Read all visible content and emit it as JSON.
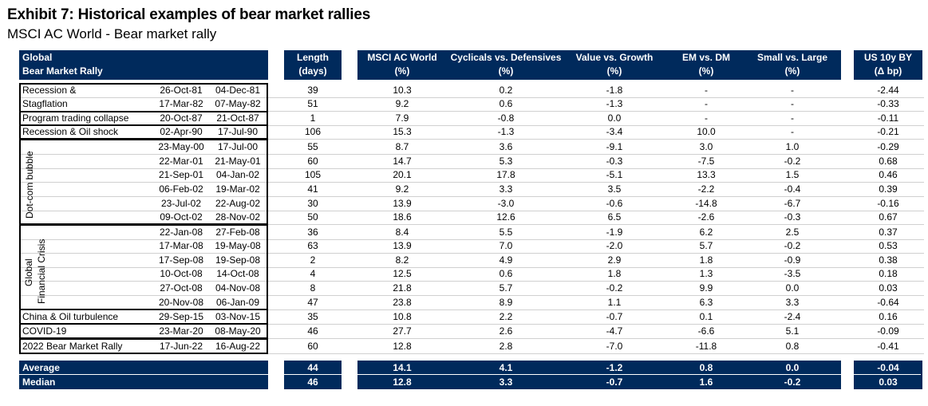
{
  "title": "Exhibit 7: Historical examples of bear market rallies",
  "subtitle": "MSCI AC World - Bear market rally",
  "header": {
    "global": "Global",
    "bmr": "Bear Market Rally",
    "length1": "Length",
    "length2": "(days)",
    "msci1": "MSCI AC World",
    "msci2": "(%)",
    "cyc1": "Cyclicals vs. Defensives",
    "cyc2": "(%)",
    "val1": "Value vs. Growth",
    "val2": "(%)",
    "em1": "EM vs. DM",
    "em2": "(%)",
    "sml1": "Small vs. Large",
    "sml2": "(%)",
    "us1": "US 10y BY",
    "us2": "(Δ bp)"
  },
  "groups": {
    "dotcom": "Dot-com bubble",
    "gfc1": "Global",
    "gfc2": "Financial Crisis"
  },
  "rows": [
    {
      "label": "Recession &",
      "start": "26-Oct-81",
      "end": "04-Dec-81",
      "len": "39",
      "msci": "10.3",
      "cyc": "0.2",
      "val": "-1.8",
      "em": "-",
      "sml": "-",
      "us": "-2.44"
    },
    {
      "label": "Stagflation",
      "start": "17-Mar-82",
      "end": "07-May-82",
      "len": "51",
      "msci": "9.2",
      "cyc": "0.6",
      "val": "-1.3",
      "em": "-",
      "sml": "-",
      "us": "-0.33"
    },
    {
      "label": "Program trading collapse",
      "start": "20-Oct-87",
      "end": "21-Oct-87",
      "len": "1",
      "msci": "7.9",
      "cyc": "-0.8",
      "val": "0.0",
      "em": "-",
      "sml": "-",
      "us": "-0.11"
    },
    {
      "label": "Recession & Oil shock",
      "start": "02-Apr-90",
      "end": "17-Jul-90",
      "len": "106",
      "msci": "15.3",
      "cyc": "-1.3",
      "val": "-3.4",
      "em": "10.0",
      "sml": "-",
      "us": "-0.21"
    },
    {
      "label": "",
      "start": "23-May-00",
      "end": "17-Jul-00",
      "len": "55",
      "msci": "8.7",
      "cyc": "3.6",
      "val": "-9.1",
      "em": "3.0",
      "sml": "1.0",
      "us": "-0.29"
    },
    {
      "label": "",
      "start": "22-Mar-01",
      "end": "21-May-01",
      "len": "60",
      "msci": "14.7",
      "cyc": "5.3",
      "val": "-0.3",
      "em": "-7.5",
      "sml": "-0.2",
      "us": "0.68"
    },
    {
      "label": "",
      "start": "21-Sep-01",
      "end": "04-Jan-02",
      "len": "105",
      "msci": "20.1",
      "cyc": "17.8",
      "val": "-5.1",
      "em": "13.3",
      "sml": "1.5",
      "us": "0.46"
    },
    {
      "label": "",
      "start": "06-Feb-02",
      "end": "19-Mar-02",
      "len": "41",
      "msci": "9.2",
      "cyc": "3.3",
      "val": "3.5",
      "em": "-2.2",
      "sml": "-0.4",
      "us": "0.39"
    },
    {
      "label": "",
      "start": "23-Jul-02",
      "end": "22-Aug-02",
      "len": "30",
      "msci": "13.9",
      "cyc": "-3.0",
      "val": "-0.6",
      "em": "-14.8",
      "sml": "-6.7",
      "us": "-0.16"
    },
    {
      "label": "",
      "start": "09-Oct-02",
      "end": "28-Nov-02",
      "len": "50",
      "msci": "18.6",
      "cyc": "12.6",
      "val": "6.5",
      "em": "-2.6",
      "sml": "-0.3",
      "us": "0.67"
    },
    {
      "label": "",
      "start": "22-Jan-08",
      "end": "27-Feb-08",
      "len": "36",
      "msci": "8.4",
      "cyc": "5.5",
      "val": "-1.9",
      "em": "6.2",
      "sml": "2.5",
      "us": "0.37"
    },
    {
      "label": "",
      "start": "17-Mar-08",
      "end": "19-May-08",
      "len": "63",
      "msci": "13.9",
      "cyc": "7.0",
      "val": "-2.0",
      "em": "5.7",
      "sml": "-0.2",
      "us": "0.53"
    },
    {
      "label": "",
      "start": "17-Sep-08",
      "end": "19-Sep-08",
      "len": "2",
      "msci": "8.2",
      "cyc": "4.9",
      "val": "2.9",
      "em": "1.8",
      "sml": "-0.9",
      "us": "0.38"
    },
    {
      "label": "",
      "start": "10-Oct-08",
      "end": "14-Oct-08",
      "len": "4",
      "msci": "12.5",
      "cyc": "0.6",
      "val": "1.8",
      "em": "1.3",
      "sml": "-3.5",
      "us": "0.18"
    },
    {
      "label": "",
      "start": "27-Oct-08",
      "end": "04-Nov-08",
      "len": "8",
      "msci": "21.8",
      "cyc": "5.7",
      "val": "-0.2",
      "em": "9.9",
      "sml": "0.0",
      "us": "0.03"
    },
    {
      "label": "",
      "start": "20-Nov-08",
      "end": "06-Jan-09",
      "len": "47",
      "msci": "23.8",
      "cyc": "8.9",
      "val": "1.1",
      "em": "6.3",
      "sml": "3.3",
      "us": "-0.64"
    },
    {
      "label": "China & Oil turbulence",
      "start": "29-Sep-15",
      "end": "03-Nov-15",
      "len": "35",
      "msci": "10.8",
      "cyc": "2.2",
      "val": "-0.7",
      "em": "0.1",
      "sml": "-2.4",
      "us": "0.16"
    },
    {
      "label": "COVID-19",
      "start": "23-Mar-20",
      "end": "08-May-20",
      "len": "46",
      "msci": "27.7",
      "cyc": "2.6",
      "val": "-4.7",
      "em": "-6.6",
      "sml": "5.1",
      "us": "-0.09"
    },
    {
      "label": "2022 Bear Market Rally",
      "start": "17-Jun-22",
      "end": "16-Aug-22",
      "len": "60",
      "msci": "12.8",
      "cyc": "2.8",
      "val": "-7.0",
      "em": "-11.8",
      "sml": "0.8",
      "us": "-0.41"
    }
  ],
  "summary": [
    {
      "label": "Average",
      "len": "44",
      "msci": "14.1",
      "cyc": "4.1",
      "val": "-1.2",
      "em": "0.8",
      "sml": "0.0",
      "us": "-0.04"
    },
    {
      "label": "Median",
      "len": "46",
      "msci": "12.8",
      "cyc": "3.3",
      "val": "-0.7",
      "em": "1.6",
      "sml": "-0.2",
      "us": "0.03"
    }
  ]
}
